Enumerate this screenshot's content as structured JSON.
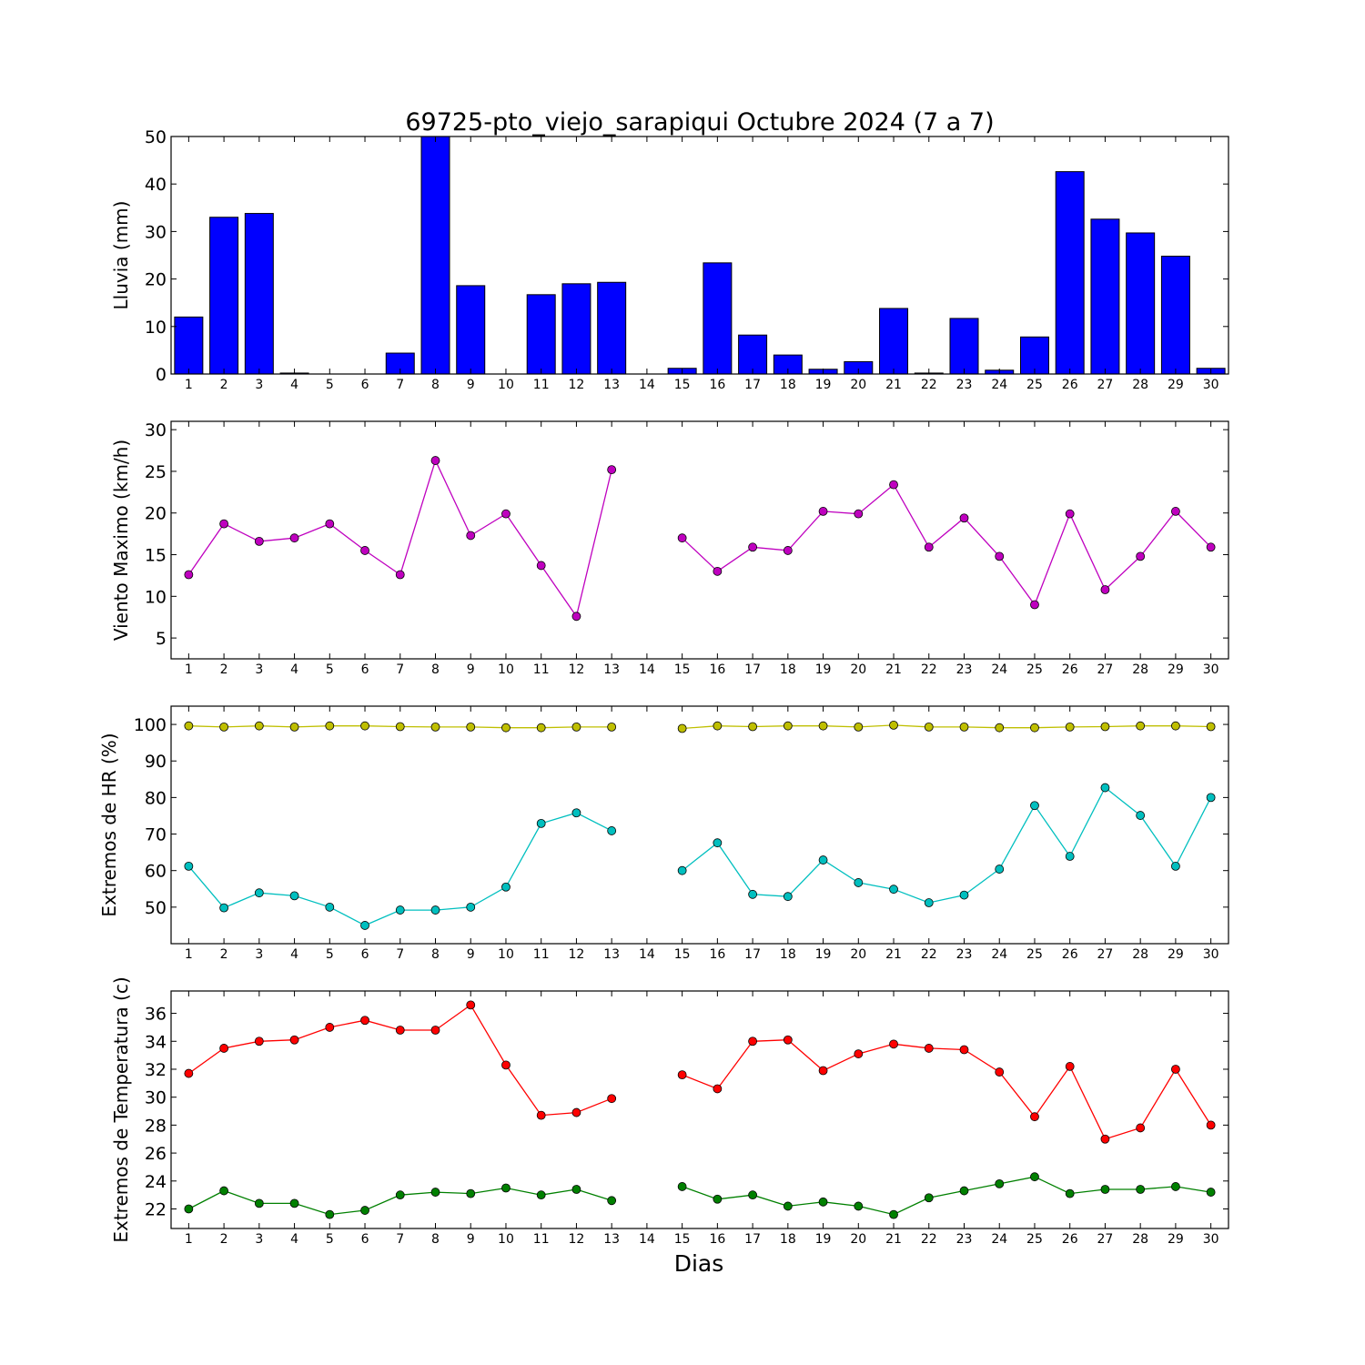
{
  "chart_data": {
    "title": "69725-pto_viejo_sarapiqui Octubre 2024  (7 a 7)",
    "xlabel": "Dias",
    "x": [
      1,
      2,
      3,
      4,
      5,
      6,
      7,
      8,
      9,
      10,
      11,
      12,
      13,
      14,
      15,
      16,
      17,
      18,
      19,
      20,
      21,
      22,
      23,
      24,
      25,
      26,
      27,
      28,
      29,
      30
    ],
    "x_ticks": [
      "1",
      "2",
      "3",
      "4",
      "5",
      "6",
      "7",
      "8",
      "9",
      "10",
      "11",
      "12",
      "13",
      "14",
      "15",
      "16",
      "17",
      "18",
      "19",
      "20",
      "21",
      "22",
      "23",
      "24",
      "25",
      "26",
      "27",
      "28",
      "29",
      "30"
    ],
    "panels": [
      {
        "type": "bar",
        "ylabel": "Lluvia (mm)",
        "ylim": [
          0,
          50
        ],
        "yticks": [
          0,
          10,
          20,
          30,
          40,
          50
        ],
        "series": [
          {
            "color": "#0000ff",
            "values": [
              12.0,
              33.0,
              33.8,
              0.2,
              0.0,
              0.0,
              4.4,
              50.0,
              18.6,
              0.0,
              16.7,
              19.0,
              19.3,
              0.0,
              1.2,
              23.4,
              8.2,
              4.0,
              1.0,
              2.6,
              13.8,
              0.2,
              11.7,
              0.8,
              7.8,
              42.6,
              32.6,
              29.7,
              24.8,
              1.2
            ]
          }
        ]
      },
      {
        "type": "line",
        "ylabel": "Viento Maximo (km/h)",
        "ylim": [
          2.5,
          31
        ],
        "yticks": [
          5,
          10,
          15,
          20,
          25,
          30
        ],
        "series": [
          {
            "color": "#bf00bf",
            "values": [
              12.6,
              18.7,
              16.6,
              17.0,
              18.7,
              15.5,
              12.6,
              26.3,
              17.3,
              19.9,
              13.7,
              7.6,
              25.2,
              null,
              17.0,
              13.0,
              15.9,
              15.5,
              20.2,
              19.9,
              23.4,
              15.9,
              19.4,
              14.8,
              9.0,
              19.9,
              10.8,
              14.8,
              20.2,
              15.9
            ]
          }
        ]
      },
      {
        "type": "line",
        "ylabel": "Extremos de HR (%)",
        "ylim": [
          40,
          105
        ],
        "yticks": [
          50,
          60,
          70,
          80,
          90,
          100
        ],
        "series": [
          {
            "color": "#bfbf00",
            "values": [
              99.6,
              99.3,
              99.6,
              99.3,
              99.6,
              99.6,
              99.4,
              99.3,
              99.3,
              99.1,
              99.1,
              99.3,
              99.3,
              null,
              98.9,
              99.6,
              99.4,
              99.6,
              99.6,
              99.3,
              99.8,
              99.3,
              99.3,
              99.1,
              99.1,
              99.3,
              99.4,
              99.6,
              99.6,
              99.4
            ]
          },
          {
            "color": "#00bfbf",
            "values": [
              61.2,
              49.8,
              53.9,
              53.1,
              50.0,
              45.0,
              49.2,
              49.2,
              50.0,
              55.5,
              72.9,
              75.8,
              70.9,
              null,
              60.0,
              67.6,
              53.5,
              52.9,
              62.9,
              56.7,
              54.9,
              51.2,
              53.3,
              60.4,
              77.8,
              63.9,
              82.7,
              75.1,
              61.2,
              80.0
            ]
          }
        ]
      },
      {
        "type": "line",
        "ylabel": "Extremos de Temperatura (c)",
        "ylim": [
          20.6,
          37.6
        ],
        "yticks": [
          22,
          24,
          26,
          28,
          30,
          32,
          34,
          36
        ],
        "series": [
          {
            "color": "#ff0000",
            "values": [
              31.7,
              33.5,
              34.0,
              34.1,
              35.0,
              35.5,
              34.8,
              34.8,
              36.6,
              32.3,
              28.7,
              28.9,
              29.9,
              null,
              31.6,
              30.6,
              34.0,
              34.1,
              31.9,
              33.1,
              33.8,
              33.5,
              33.4,
              31.8,
              28.6,
              32.2,
              27.0,
              27.8,
              32.0,
              28.0
            ]
          },
          {
            "color": "#008000",
            "values": [
              22.0,
              23.3,
              22.4,
              22.4,
              21.6,
              21.9,
              23.0,
              23.2,
              23.1,
              23.5,
              23.0,
              23.4,
              22.6,
              null,
              23.6,
              22.7,
              23.0,
              22.2,
              22.5,
              22.2,
              21.6,
              22.8,
              23.3,
              23.8,
              24.3,
              23.1,
              23.4,
              23.4,
              23.6,
              23.2
            ]
          }
        ]
      }
    ]
  }
}
